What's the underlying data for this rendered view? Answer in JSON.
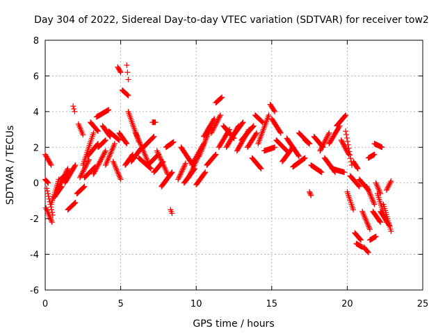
{
  "chart_data": {
    "type": "scatter",
    "title": "Day 304 of 2022, Sidereal Day-to-day VTEC variation (SDTVAR) for receiver tow2",
    "xlabel": "GPS time / hours",
    "ylabel": "SDTVAR / TECUs",
    "xlim": [
      0,
      25
    ],
    "ylim": [
      -6,
      8
    ],
    "xticks": [
      "0",
      "5",
      "10",
      "15",
      "20",
      "25"
    ],
    "yticks": [
      "-6",
      "-4",
      "-2",
      "0",
      "2",
      "4",
      "6",
      "8"
    ],
    "grid": true,
    "marker": "+",
    "color": "#ff0000",
    "series": [
      {
        "name": "SDTVAR",
        "tracks": [
          {
            "x0": 0.0,
            "x1": 0.2,
            "y0": 0.2,
            "y1": 0.0
          },
          {
            "x0": 0.0,
            "x1": 0.4,
            "y0": 1.6,
            "y1": 1.0
          },
          {
            "x0": 0.05,
            "x1": 0.45,
            "y0": -1.4,
            "y1": -2.2
          },
          {
            "x0": 0.1,
            "x1": 0.5,
            "y0": -0.3,
            "y1": -1.8
          },
          {
            "x0": 0.4,
            "x1": 0.9,
            "y0": -1.2,
            "y1": 0.2
          },
          {
            "x0": 0.6,
            "x1": 1.1,
            "y0": -0.8,
            "y1": -0.2
          },
          {
            "x0": 0.8,
            "x1": 1.5,
            "y0": -0.4,
            "y1": 0.8
          },
          {
            "x0": 1.0,
            "x1": 1.6,
            "y0": 0.2,
            "y1": 0.6
          },
          {
            "x0": 1.3,
            "x1": 2.0,
            "y0": 0.0,
            "y1": 1.0
          },
          {
            "x0": 1.5,
            "x1": 2.0,
            "y0": -1.5,
            "y1": -1.1
          },
          {
            "x0": 1.85,
            "x1": 1.95,
            "y0": 4.3,
            "y1": 4.0
          },
          {
            "x0": 2.1,
            "x1": 2.6,
            "y0": -0.6,
            "y1": -0.2
          },
          {
            "x0": 2.2,
            "x1": 2.5,
            "y0": 3.3,
            "y1": 2.7
          },
          {
            "x0": 2.3,
            "x1": 2.9,
            "y0": 0.3,
            "y1": 1.3
          },
          {
            "x0": 2.5,
            "x1": 3.2,
            "y0": 1.0,
            "y1": 2.8
          },
          {
            "x0": 2.6,
            "x1": 3.3,
            "y0": 0.3,
            "y1": 0.9
          },
          {
            "x0": 2.8,
            "x1": 3.5,
            "y0": 1.5,
            "y1": 2.2
          },
          {
            "x0": 3.0,
            "x1": 3.5,
            "y0": 3.4,
            "y1": 2.9
          },
          {
            "x0": 3.2,
            "x1": 4.0,
            "y0": 0.5,
            "y1": 1.8
          },
          {
            "x0": 3.4,
            "x1": 4.2,
            "y0": 3.7,
            "y1": 4.1
          },
          {
            "x0": 3.5,
            "x1": 4.0,
            "y0": 2.0,
            "y1": 2.4
          },
          {
            "x0": 3.8,
            "x1": 4.3,
            "y0": 3.2,
            "y1": 2.6
          },
          {
            "x0": 4.0,
            "x1": 4.6,
            "y0": 1.0,
            "y1": 2.2
          },
          {
            "x0": 4.2,
            "x1": 4.9,
            "y0": 2.9,
            "y1": 2.4
          },
          {
            "x0": 4.5,
            "x1": 5.0,
            "y0": 1.2,
            "y1": 0.2
          },
          {
            "x0": 4.8,
            "x1": 5.0,
            "y0": 6.5,
            "y1": 6.2
          },
          {
            "x0": 4.9,
            "x1": 5.4,
            "y0": 2.8,
            "y1": 2.2
          },
          {
            "x0": 5.1,
            "x1": 5.5,
            "y0": 5.2,
            "y1": 4.9
          },
          {
            "x0": 5.4,
            "x1": 5.5,
            "y0": 6.6,
            "y1": 5.8
          },
          {
            "x0": 5.3,
            "x1": 5.8,
            "y0": 1.0,
            "y1": 1.6
          },
          {
            "x0": 5.5,
            "x1": 6.2,
            "y0": 4.0,
            "y1": 2.3
          },
          {
            "x0": 5.7,
            "x1": 6.4,
            "y0": 1.2,
            "y1": 2.0
          },
          {
            "x0": 6.0,
            "x1": 6.8,
            "y0": 2.8,
            "y1": 1.2
          },
          {
            "x0": 6.2,
            "x1": 7.0,
            "y0": 1.4,
            "y1": 0.8
          },
          {
            "x0": 6.5,
            "x1": 7.2,
            "y0": 2.0,
            "y1": 2.6
          },
          {
            "x0": 6.8,
            "x1": 7.5,
            "y0": 1.0,
            "y1": 1.6
          },
          {
            "x0": 7.1,
            "x1": 7.3,
            "y0": 3.4,
            "y1": 3.4
          },
          {
            "x0": 7.2,
            "x1": 7.8,
            "y0": 0.6,
            "y1": 1.2
          },
          {
            "x0": 7.4,
            "x1": 8.1,
            "y0": 1.8,
            "y1": 0.5
          },
          {
            "x0": 7.7,
            "x1": 8.4,
            "y0": -0.2,
            "y1": 0.6
          },
          {
            "x0": 8.0,
            "x1": 8.5,
            "y0": 2.0,
            "y1": 2.3
          },
          {
            "x0": 8.3,
            "x1": 8.4,
            "y0": -1.5,
            "y1": -1.7
          },
          {
            "x0": 8.8,
            "x1": 9.3,
            "y0": 0.2,
            "y1": 1.1
          },
          {
            "x0": 9.0,
            "x1": 9.7,
            "y0": 2.0,
            "y1": 1.1
          },
          {
            "x0": 9.2,
            "x1": 9.9,
            "y0": 0.0,
            "y1": 0.8
          },
          {
            "x0": 9.5,
            "x1": 10.2,
            "y0": 0.3,
            "y1": 1.6
          },
          {
            "x0": 9.7,
            "x1": 10.5,
            "y0": 1.0,
            "y1": 2.2
          },
          {
            "x0": 10.0,
            "x1": 10.6,
            "y0": -0.1,
            "y1": 0.6
          },
          {
            "x0": 10.2,
            "x1": 11.0,
            "y0": 1.5,
            "y1": 3.2
          },
          {
            "x0": 10.5,
            "x1": 11.2,
            "y0": 2.6,
            "y1": 3.6
          },
          {
            "x0": 10.7,
            "x1": 11.3,
            "y0": 1.0,
            "y1": 1.6
          },
          {
            "x0": 11.0,
            "x1": 11.6,
            "y0": 2.8,
            "y1": 3.8
          },
          {
            "x0": 11.3,
            "x1": 11.7,
            "y0": 4.5,
            "y1": 4.8
          },
          {
            "x0": 11.5,
            "x1": 12.2,
            "y0": 2.0,
            "y1": 3.0
          },
          {
            "x0": 11.8,
            "x1": 12.5,
            "y0": 3.2,
            "y1": 2.5
          },
          {
            "x0": 12.0,
            "x1": 12.8,
            "y0": 2.0,
            "y1": 3.2
          },
          {
            "x0": 12.4,
            "x1": 13.1,
            "y0": 2.6,
            "y1": 3.4
          },
          {
            "x0": 12.7,
            "x1": 13.5,
            "y0": 1.8,
            "y1": 3.0
          },
          {
            "x0": 13.0,
            "x1": 13.8,
            "y0": 2.4,
            "y1": 3.2
          },
          {
            "x0": 13.4,
            "x1": 14.0,
            "y0": 2.0,
            "y1": 2.8
          },
          {
            "x0": 13.7,
            "x1": 14.3,
            "y0": 1.4,
            "y1": 0.8
          },
          {
            "x0": 13.9,
            "x1": 14.4,
            "y0": 3.8,
            "y1": 3.4
          },
          {
            "x0": 14.1,
            "x1": 14.8,
            "y0": 2.2,
            "y1": 3.8
          },
          {
            "x0": 14.5,
            "x1": 15.2,
            "y0": 1.8,
            "y1": 2.0
          },
          {
            "x0": 14.9,
            "x1": 15.2,
            "y0": 4.4,
            "y1": 4.0
          },
          {
            "x0": 15.0,
            "x1": 15.6,
            "y0": 3.6,
            "y1": 2.8
          },
          {
            "x0": 15.3,
            "x1": 16.0,
            "y0": 2.4,
            "y1": 1.8
          },
          {
            "x0": 15.7,
            "x1": 16.4,
            "y0": 1.2,
            "y1": 2.0
          },
          {
            "x0": 16.0,
            "x1": 16.8,
            "y0": 2.5,
            "y1": 1.5
          },
          {
            "x0": 16.4,
            "x1": 17.2,
            "y0": 0.9,
            "y1": 1.4
          },
          {
            "x0": 16.8,
            "x1": 17.5,
            "y0": 2.8,
            "y1": 2.2
          },
          {
            "x0": 17.2,
            "x1": 17.5,
            "y0": 2.4,
            "y1": 2.2
          },
          {
            "x0": 17.5,
            "x1": 17.6,
            "y0": -0.5,
            "y1": -0.7
          },
          {
            "x0": 17.6,
            "x1": 18.3,
            "y0": 1.0,
            "y1": 0.6
          },
          {
            "x0": 17.8,
            "x1": 18.4,
            "y0": 2.6,
            "y1": 2.0
          },
          {
            "x0": 18.2,
            "x1": 18.8,
            "y0": 1.8,
            "y1": 2.8
          },
          {
            "x0": 18.5,
            "x1": 19.2,
            "y0": 1.4,
            "y1": 0.6
          },
          {
            "x0": 18.8,
            "x1": 19.5,
            "y0": 2.2,
            "y1": 3.2
          },
          {
            "x0": 19.0,
            "x1": 19.8,
            "y0": 0.8,
            "y1": 0.6
          },
          {
            "x0": 19.3,
            "x1": 19.9,
            "y0": 3.2,
            "y1": 3.8
          },
          {
            "x0": 19.6,
            "x1": 20.1,
            "y0": 2.4,
            "y1": 1.6
          },
          {
            "x0": 19.9,
            "x1": 20.3,
            "y0": 2.9,
            "y1": 1.0
          },
          {
            "x0": 20.0,
            "x1": 20.4,
            "y0": -0.5,
            "y1": -1.5
          },
          {
            "x0": 20.2,
            "x1": 20.8,
            "y0": 0.4,
            "y1": -0.2
          },
          {
            "x0": 20.4,
            "x1": 20.7,
            "y0": 1.2,
            "y1": 0.8
          },
          {
            "x0": 20.5,
            "x1": 20.9,
            "y0": -2.8,
            "y1": -3.2
          },
          {
            "x0": 20.6,
            "x1": 21.0,
            "y0": -3.4,
            "y1": -3.6
          },
          {
            "x0": 20.8,
            "x1": 21.4,
            "y0": 0.2,
            "y1": -0.4
          },
          {
            "x0": 21.0,
            "x1": 21.5,
            "y0": -1.6,
            "y1": -2.6
          },
          {
            "x0": 21.1,
            "x1": 21.4,
            "y0": -3.6,
            "y1": -3.9
          },
          {
            "x0": 21.3,
            "x1": 21.8,
            "y0": -0.2,
            "y1": -1.2
          },
          {
            "x0": 21.4,
            "x1": 21.8,
            "y0": 1.4,
            "y1": 1.6
          },
          {
            "x0": 21.5,
            "x1": 21.9,
            "y0": -3.2,
            "y1": -3.0
          },
          {
            "x0": 21.7,
            "x1": 22.2,
            "y0": -1.6,
            "y1": -2.2
          },
          {
            "x0": 21.8,
            "x1": 22.3,
            "y0": 2.2,
            "y1": 2.0
          },
          {
            "x0": 21.9,
            "x1": 22.2,
            "y0": 0.0,
            "y1": -0.6
          },
          {
            "x0": 22.0,
            "x1": 22.6,
            "y0": -0.6,
            "y1": -2.2
          },
          {
            "x0": 22.2,
            "x1": 22.8,
            "y0": -1.6,
            "y1": -2.4
          },
          {
            "x0": 22.4,
            "x1": 22.9,
            "y0": -1.2,
            "y1": -2.7
          },
          {
            "x0": 22.6,
            "x1": 22.9,
            "y0": -0.4,
            "y1": 0.1
          }
        ]
      }
    ]
  }
}
